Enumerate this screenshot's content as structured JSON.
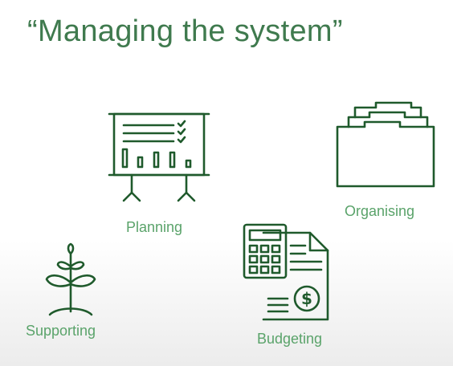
{
  "slide": {
    "title": "“Managing the system”",
    "accent_color": "#1f5a2c",
    "label_color": "#5aa36a",
    "title_color": "#3f7a4e",
    "items": [
      {
        "label": "Planning",
        "icon": "presentation-board-icon"
      },
      {
        "label": "Organising",
        "icon": "folders-icon"
      },
      {
        "label": "Supporting",
        "icon": "plant-icon"
      },
      {
        "label": "Budgeting",
        "icon": "calculator-invoice-icon"
      }
    ]
  }
}
